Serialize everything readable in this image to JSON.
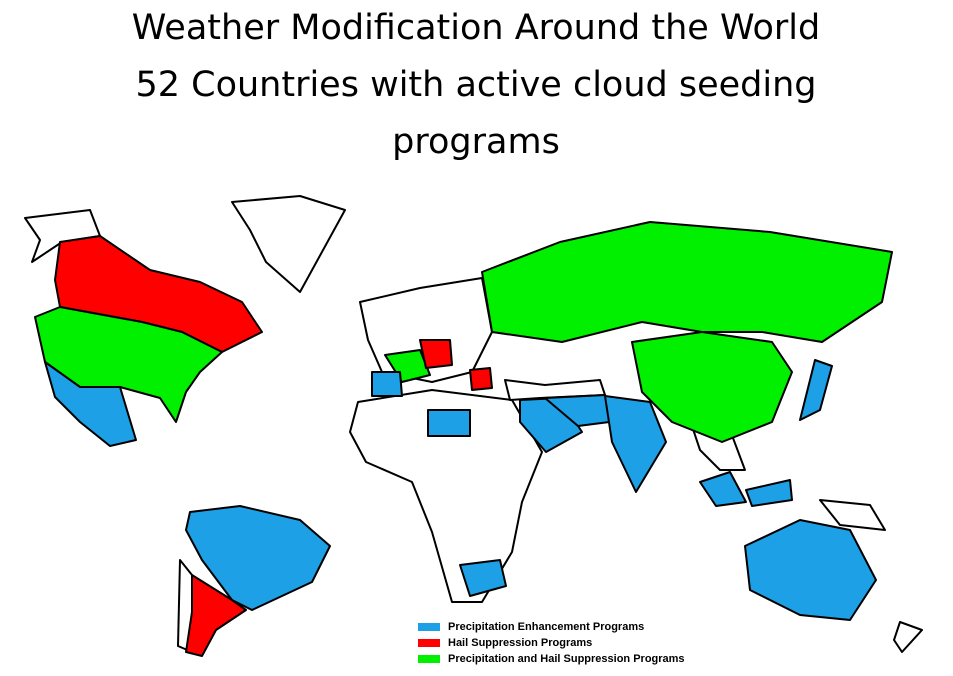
{
  "header": {
    "title": "Weather Modification Around the World",
    "subtitle": "52 Countries with active cloud seeding programs"
  },
  "legend": {
    "items": [
      {
        "label": "Precipitation Enhancement Programs",
        "color": "#1ea0e6"
      },
      {
        "label": "Hail Suppression Programs",
        "color": "#ff0000"
      },
      {
        "label": "Precipitation and Hail Suppression Programs",
        "color": "#00f000"
      }
    ]
  }
}
